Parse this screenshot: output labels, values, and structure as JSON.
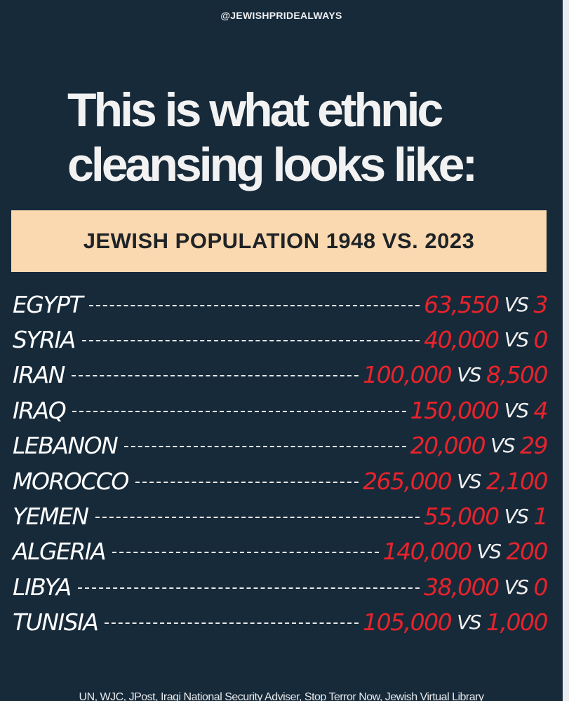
{
  "header": {
    "handle": "@JEWISHPRIDEALWAYS"
  },
  "headline": {
    "line1": "This is what ethnic",
    "line2": "cleansing looks like:"
  },
  "banner": {
    "title": "JEWISH POPULATION 1948 VS. 2023"
  },
  "separator": "VS",
  "rows": [
    {
      "country": "EGYPT",
      "y1948": "63,550",
      "y2023": "3"
    },
    {
      "country": "SYRIA",
      "y1948": "40,000",
      "y2023": "0"
    },
    {
      "country": "IRAN",
      "y1948": "100,000",
      "y2023": "8,500"
    },
    {
      "country": "IRAQ",
      "y1948": "150,000",
      "y2023": "4"
    },
    {
      "country": "LEBANON",
      "y1948": "20,000",
      "y2023": "29"
    },
    {
      "country": "MOROCCO",
      "y1948": "265,000",
      "y2023": "2,100"
    },
    {
      "country": "YEMEN",
      "y1948": "55,000",
      "y2023": "1"
    },
    {
      "country": "ALGERIA",
      "y1948": "140,000",
      "y2023": "200"
    },
    {
      "country": "LIBYA",
      "y1948": "38,000",
      "y2023": "0"
    },
    {
      "country": "TUNISIA",
      "y1948": "105,000",
      "y2023": "1,000"
    }
  ],
  "footer": {
    "sources": "UN, WJC, JPost, Iraqi National Security Adviser, Stop Terror Now, Jewish Virtual Library"
  },
  "colors": {
    "background": "#172a3a",
    "banner": "#fad8b0",
    "accent_red": "#e8232b"
  }
}
